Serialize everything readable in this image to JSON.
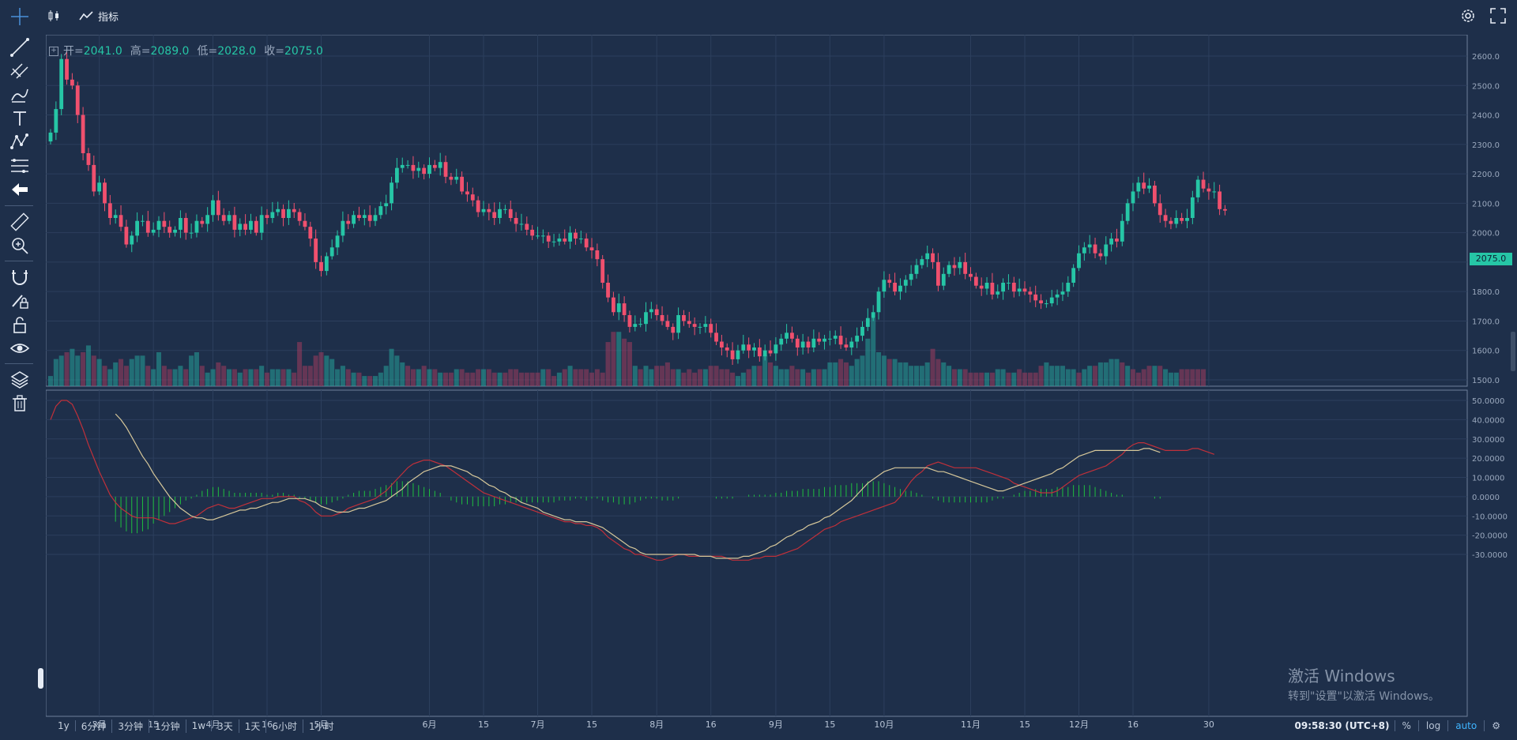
{
  "toolbar": {
    "indicators_label": "指标"
  },
  "ohlc": {
    "open_label": "开=",
    "open": "2041.0",
    "high_label": "高=",
    "high": "2089.0",
    "low_label": "低=",
    "low": "2028.0",
    "close_label": "收=",
    "close": "2075.0"
  },
  "current_price": "2075.0",
  "periods": [
    "1y",
    "6分钟",
    "3分钟",
    "1分钟",
    "1w",
    "3天",
    "1天",
    "6小时",
    "1小时"
  ],
  "status": {
    "time": "09:58:30 (UTC+8)",
    "percent": "%",
    "log": "log",
    "auto": "auto"
  },
  "watermark": {
    "line1": "激活 Windows",
    "line2": "转到\"设置\"以激活 Windows。"
  },
  "colors": {
    "background": "#1e2f4a",
    "up": "#26c6a6",
    "down": "#f0506e",
    "macd_dif": "#c0303a",
    "macd_dea": "#d6c79a",
    "macd_hist": "#1fbf3f"
  },
  "chart_data": {
    "type": "candlestick",
    "price_axis": {
      "ticks": [
        2600,
        2500,
        2400,
        2300,
        2200,
        2100,
        2000,
        1900,
        1800,
        1700,
        1600,
        1500
      ],
      "labels": [
        "2600.0",
        "2500.0",
        "2400.0",
        "2300.0",
        "2200.0",
        "2100.0",
        "2000.0",
        "1900.0",
        "1800.0",
        "1700.0",
        "1600.0",
        "1500.0"
      ]
    },
    "macd_axis": {
      "ticks": [
        50,
        40,
        30,
        20,
        10,
        0,
        -10,
        -20,
        -30
      ],
      "labels": [
        "50.0000",
        "40.0000",
        "30.0000",
        "20.0000",
        "10.0000",
        "0.0000",
        "-10.0000",
        "-20.0000",
        "-30.0000"
      ]
    },
    "x_labels": [
      {
        "i": 9,
        "t": "3月"
      },
      {
        "i": 19,
        "t": "15"
      },
      {
        "i": 30,
        "t": "4月"
      },
      {
        "i": 40,
        "t": "16"
      },
      {
        "i": 50,
        "t": "5月"
      },
      {
        "i": 70,
        "t": "6月"
      },
      {
        "i": 80,
        "t": "15"
      },
      {
        "i": 90,
        "t": "7月"
      },
      {
        "i": 100,
        "t": "15"
      },
      {
        "i": 112,
        "t": "8月"
      },
      {
        "i": 122,
        "t": "16"
      },
      {
        "i": 134,
        "t": "9月"
      },
      {
        "i": 144,
        "t": "15"
      },
      {
        "i": 154,
        "t": "10月"
      },
      {
        "i": 170,
        "t": "11月"
      },
      {
        "i": 180,
        "t": "15"
      },
      {
        "i": 190,
        "t": "12月"
      },
      {
        "i": 200,
        "t": "16"
      },
      {
        "i": 214,
        "t": "30"
      }
    ],
    "closes": [
      2340,
      2420,
      2590,
      2520,
      2500,
      2400,
      2270,
      2230,
      2140,
      2170,
      2100,
      2050,
      2060,
      2020,
      1960,
      1990,
      2040,
      2040,
      2000,
      2010,
      2040,
      2020,
      2000,
      2010,
      2050,
      2000,
      2000,
      2040,
      2030,
      2060,
      2110,
      2060,
      2040,
      2060,
      2010,
      2030,
      2010,
      2040,
      2000,
      2060,
      2050,
      2070,
      2080,
      2050,
      2080,
      2070,
      2040,
      2020,
      1980,
      1900,
      1870,
      1920,
      1950,
      1990,
      2040,
      2030,
      2060,
      2050,
      2060,
      2040,
      2060,
      2090,
      2100,
      2170,
      2220,
      2230,
      2230,
      2210,
      2220,
      2200,
      2230,
      2220,
      2240,
      2190,
      2180,
      2190,
      2140,
      2130,
      2110,
      2070,
      2080,
      2070,
      2050,
      2080,
      2080,
      2050,
      2030,
      2030,
      2010,
      1990,
      1990,
      1990,
      1970,
      1970,
      1980,
      1970,
      2000,
      1980,
      1980,
      1950,
      1940,
      1910,
      1830,
      1780,
      1730,
      1760,
      1720,
      1680,
      1690,
      1690,
      1730,
      1740,
      1720,
      1700,
      1680,
      1660,
      1720,
      1700,
      1690,
      1680,
      1680,
      1690,
      1660,
      1630,
      1610,
      1600,
      1570,
      1600,
      1620,
      1600,
      1610,
      1580,
      1600,
      1590,
      1620,
      1640,
      1660,
      1640,
      1610,
      1630,
      1610,
      1640,
      1630,
      1640,
      1640,
      1650,
      1620,
      1610,
      1630,
      1650,
      1680,
      1710,
      1730,
      1800,
      1840,
      1830,
      1800,
      1820,
      1840,
      1860,
      1890,
      1910,
      1930,
      1900,
      1820,
      1860,
      1890,
      1880,
      1900,
      1860,
      1850,
      1820,
      1810,
      1830,
      1790,
      1800,
      1830,
      1830,
      1800,
      1810,
      1800,
      1790,
      1770,
      1760,
      1760,
      1780,
      1790,
      1800,
      1830,
      1880,
      1930,
      1950,
      1960,
      1930,
      1920,
      1960,
      1980,
      1970,
      2040,
      2100,
      2140,
      2170,
      2150,
      2160,
      2100,
      2060,
      2040,
      2030,
      2050,
      2040,
      2050,
      2120,
      2180,
      2150,
      2140,
      2140,
      2080,
      2075
    ],
    "macd": {
      "dif": [
        40,
        47,
        50,
        50,
        48,
        42,
        35,
        27,
        20,
        13,
        7,
        1,
        -3,
        -6,
        -8,
        -10,
        -11,
        -11,
        -11,
        -11,
        -12,
        -13,
        -14,
        -14,
        -13,
        -12,
        -11,
        -10,
        -8,
        -6,
        -5,
        -4,
        -5,
        -6,
        -6,
        -5,
        -4,
        -3,
        -2,
        -1,
        -1,
        -1,
        0,
        0,
        0,
        0,
        -2,
        -3,
        -5,
        -8,
        -10,
        -10,
        -10,
        -9,
        -8,
        -6,
        -5,
        -4,
        -3,
        -2,
        -1,
        1,
        3,
        6,
        9,
        12,
        15,
        17,
        18,
        19,
        19,
        18,
        17,
        16,
        14,
        12,
        10,
        8,
        6,
        4,
        2,
        1,
        0,
        -1,
        -2,
        -3,
        -4,
        -5,
        -6,
        -7,
        -8,
        -9,
        -10,
        -11,
        -12,
        -13,
        -13,
        -14,
        -14,
        -15,
        -15,
        -16,
        -18,
        -21,
        -23,
        -25,
        -27,
        -28,
        -30,
        -30,
        -31,
        -32,
        -33,
        -33,
        -32,
        -31,
        -30,
        -30,
        -31,
        -31,
        -31,
        -31,
        -31,
        -31,
        -31,
        -32,
        -33,
        -33,
        -33,
        -33,
        -32,
        -32,
        -31,
        -31,
        -31,
        -30,
        -29,
        -28,
        -27,
        -25,
        -23,
        -21,
        -19,
        -17,
        -16,
        -15,
        -13,
        -12,
        -11,
        -10,
        -9,
        -8,
        -7,
        -6,
        -5,
        -4,
        -3,
        0,
        4,
        8,
        11,
        13,
        16,
        17,
        18,
        17,
        16,
        15,
        15,
        15,
        15,
        15,
        14,
        13,
        12,
        11,
        10,
        9,
        7,
        6,
        5,
        4,
        3,
        2,
        2,
        2,
        3,
        5,
        7,
        9,
        11,
        12,
        13,
        14,
        15,
        16,
        18,
        20,
        22,
        25,
        27,
        28,
        28,
        27,
        26,
        25,
        24,
        24,
        24,
        24,
        24,
        25,
        25,
        24,
        23,
        22
      ],
      "dea": [
        null,
        null,
        null,
        null,
        null,
        null,
        null,
        null,
        null,
        null,
        null,
        null,
        43,
        40,
        36,
        31,
        26,
        21,
        17,
        12,
        8,
        4,
        0,
        -3,
        -6,
        -8,
        -10,
        -11,
        -11,
        -12,
        -12,
        -11,
        -10,
        -9,
        -8,
        -7,
        -7,
        -6,
        -6,
        -5,
        -4,
        -3,
        -3,
        -2,
        -1,
        -1,
        -1,
        -1,
        -2,
        -3,
        -5,
        -6,
        -7,
        -8,
        -8,
        -8,
        -7,
        -6,
        -6,
        -5,
        -4,
        -3,
        -2,
        0,
        2,
        4,
        7,
        9,
        11,
        13,
        14,
        15,
        16,
        16,
        16,
        15,
        14,
        13,
        11,
        10,
        8,
        6,
        5,
        3,
        2,
        0,
        -1,
        -3,
        -4,
        -5,
        -6,
        -8,
        -9,
        -10,
        -11,
        -12,
        -12,
        -13,
        -13,
        -13,
        -14,
        -15,
        -16,
        -18,
        -20,
        -22,
        -24,
        -26,
        -27,
        -29,
        -30,
        -30,
        -30,
        -30,
        -30,
        -30,
        -30,
        -30,
        -30,
        -30,
        -31,
        -31,
        -31,
        -32,
        -32,
        -32,
        -32,
        -32,
        -31,
        -31,
        -30,
        -29,
        -28,
        -26,
        -25,
        -23,
        -21,
        -20,
        -18,
        -17,
        -15,
        -14,
        -13,
        -11,
        -10,
        -8,
        -6,
        -4,
        -2,
        1,
        4,
        7,
        9,
        11,
        13,
        14,
        15,
        15,
        15,
        15,
        15,
        15,
        15,
        14,
        13,
        13,
        12,
        11,
        10,
        9,
        8,
        7,
        6,
        5,
        4,
        3,
        3,
        4,
        5,
        6,
        7,
        8,
        9,
        10,
        11,
        12,
        14,
        15,
        17,
        19,
        21,
        22,
        23,
        24,
        24,
        24,
        24,
        24,
        24,
        24,
        24,
        24,
        25,
        25,
        24,
        23
      ],
      "hist": [
        0,
        0,
        0,
        0,
        0,
        0,
        0,
        0,
        0,
        0,
        0,
        0,
        -13,
        -16,
        -18,
        -19,
        -19,
        -18,
        -17,
        -14,
        -12,
        -10,
        -8,
        -6,
        -4,
        -2,
        -1,
        1,
        3,
        4,
        5,
        5,
        4,
        3,
        2,
        2,
        2,
        2,
        2,
        2,
        1,
        1,
        2,
        2,
        1,
        1,
        -1,
        -1,
        -2,
        -3,
        -4,
        -4,
        -3,
        -2,
        -1,
        1,
        2,
        3,
        3,
        3,
        4,
        5,
        6,
        7,
        8,
        8,
        8,
        7,
        6,
        5,
        4,
        3,
        2,
        0,
        -2,
        -3,
        -4,
        -4,
        -5,
        -5,
        -5,
        -5,
        -5,
        -4,
        -4,
        -3,
        -3,
        -3,
        -3,
        -3,
        -3,
        -3,
        -3,
        -3,
        -2,
        -2,
        -2,
        -1,
        -1,
        -2,
        -1,
        -1,
        -2,
        -3,
        -3,
        -4,
        -4,
        -4,
        -3,
        -2,
        -1,
        -1,
        -1,
        -2,
        -2,
        -2,
        -1,
        0,
        0,
        0,
        0,
        0,
        0,
        -1,
        -1,
        -1,
        -1,
        0,
        0,
        1,
        1,
        1,
        1,
        1,
        2,
        2,
        3,
        3,
        3,
        4,
        4,
        4,
        4,
        5,
        5,
        6,
        6,
        6,
        7,
        7,
        7,
        8,
        8,
        8,
        7,
        6,
        5,
        4,
        3,
        3,
        2,
        1,
        0,
        -1,
        -2,
        -3,
        -3,
        -3,
        -3,
        -3,
        -3,
        -3,
        -3,
        -3,
        -2,
        -1,
        -1,
        0,
        1,
        2,
        3,
        3,
        4,
        4,
        4,
        4,
        5,
        5,
        5,
        6,
        6,
        6,
        6,
        5,
        4,
        3,
        2,
        1,
        1,
        0,
        0,
        0,
        0,
        0,
        -1,
        -1
      ]
    },
    "volume": [
      3,
      8,
      9,
      10,
      11,
      9,
      10,
      12,
      9,
      8,
      6,
      5,
      7,
      8,
      6,
      8,
      9,
      9,
      6,
      5,
      10,
      6,
      5,
      5,
      6,
      5,
      9,
      10,
      6,
      4,
      5,
      7,
      6,
      5,
      5,
      4,
      5,
      5,
      5,
      6,
      4,
      5,
      5,
      5,
      5,
      4,
      13,
      6,
      6,
      9,
      10,
      9,
      8,
      5,
      6,
      5,
      4,
      4,
      3,
      3,
      3,
      4,
      6,
      11,
      9,
      7,
      6,
      5,
      5,
      6,
      5,
      5,
      4,
      4,
      4,
      5,
      5,
      4,
      4,
      5,
      5,
      5,
      4,
      4,
      4,
      5,
      5,
      4,
      4,
      4,
      4,
      5,
      5,
      3,
      4,
      5,
      6,
      5,
      5,
      5,
      4,
      5,
      4,
      13,
      16,
      16,
      14,
      13,
      6,
      5,
      6,
      5,
      6,
      6,
      7,
      5,
      5,
      4,
      5,
      4,
      5,
      5,
      6,
      6,
      5,
      5,
      4,
      3,
      4,
      5,
      6,
      6,
      9,
      7,
      6,
      5,
      5,
      6,
      5,
      5,
      4,
      5,
      5,
      5,
      7,
      7,
      8,
      7,
      6,
      8,
      9,
      14,
      20,
      10,
      9,
      8,
      8,
      7,
      7,
      6,
      6,
      6,
      7,
      11,
      8,
      7,
      6,
      5,
      5,
      5,
      4,
      4,
      4,
      4,
      4,
      5,
      5,
      4,
      4,
      5,
      4,
      4,
      4,
      6,
      7,
      6,
      6,
      6,
      5,
      5,
      4,
      5,
      6,
      6,
      7,
      7,
      8,
      8,
      7,
      6,
      5,
      4,
      5,
      6,
      6,
      6,
      5,
      4,
      4,
      5,
      5,
      5,
      5,
      5
    ],
    "volume_up": [
      1,
      1,
      1,
      0,
      1,
      1,
      0,
      1,
      0,
      1,
      0,
      1,
      1,
      0,
      0,
      1,
      1,
      1,
      0,
      1,
      1,
      0,
      0,
      1,
      1,
      0,
      1,
      1,
      0,
      1,
      1,
      0,
      0,
      1,
      0,
      1,
      0,
      1,
      0,
      1,
      0,
      1,
      1,
      0,
      1,
      0,
      0,
      0,
      0,
      0,
      0,
      1,
      1,
      1,
      1,
      0,
      1,
      0,
      1,
      0,
      1,
      1,
      1,
      1,
      1,
      1,
      0,
      0,
      1,
      0,
      1,
      0,
      1,
      0,
      0,
      1,
      0,
      0,
      0,
      0,
      1,
      0,
      0,
      1,
      0,
      0,
      0,
      0,
      0,
      0,
      0,
      1,
      0,
      0,
      1,
      0,
      1,
      0,
      0,
      0,
      0,
      0,
      0,
      0,
      0,
      1,
      0,
      0,
      1,
      0,
      1,
      1,
      0,
      0,
      0,
      0,
      1,
      0,
      0,
      0,
      0,
      1,
      0,
      0,
      0,
      0,
      0,
      1,
      1,
      0,
      1,
      0,
      1,
      0,
      1,
      1,
      1,
      0,
      0,
      1,
      0,
      1,
      0,
      1,
      1,
      1,
      0,
      0,
      1,
      1,
      1,
      1,
      1,
      1,
      1,
      0,
      1,
      1,
      1,
      1,
      1,
      1,
      1,
      0,
      0,
      1,
      1,
      0,
      1,
      0,
      0,
      0,
      0,
      1,
      0,
      1,
      1,
      0,
      1,
      0,
      0,
      0,
      0,
      0,
      1,
      1,
      1,
      1,
      1,
      1,
      0,
      1,
      1,
      0,
      1,
      1,
      1,
      1,
      0,
      1,
      0,
      0,
      0,
      0,
      1,
      0,
      1,
      1,
      1,
      0,
      0,
      0,
      0,
      0
    ]
  }
}
